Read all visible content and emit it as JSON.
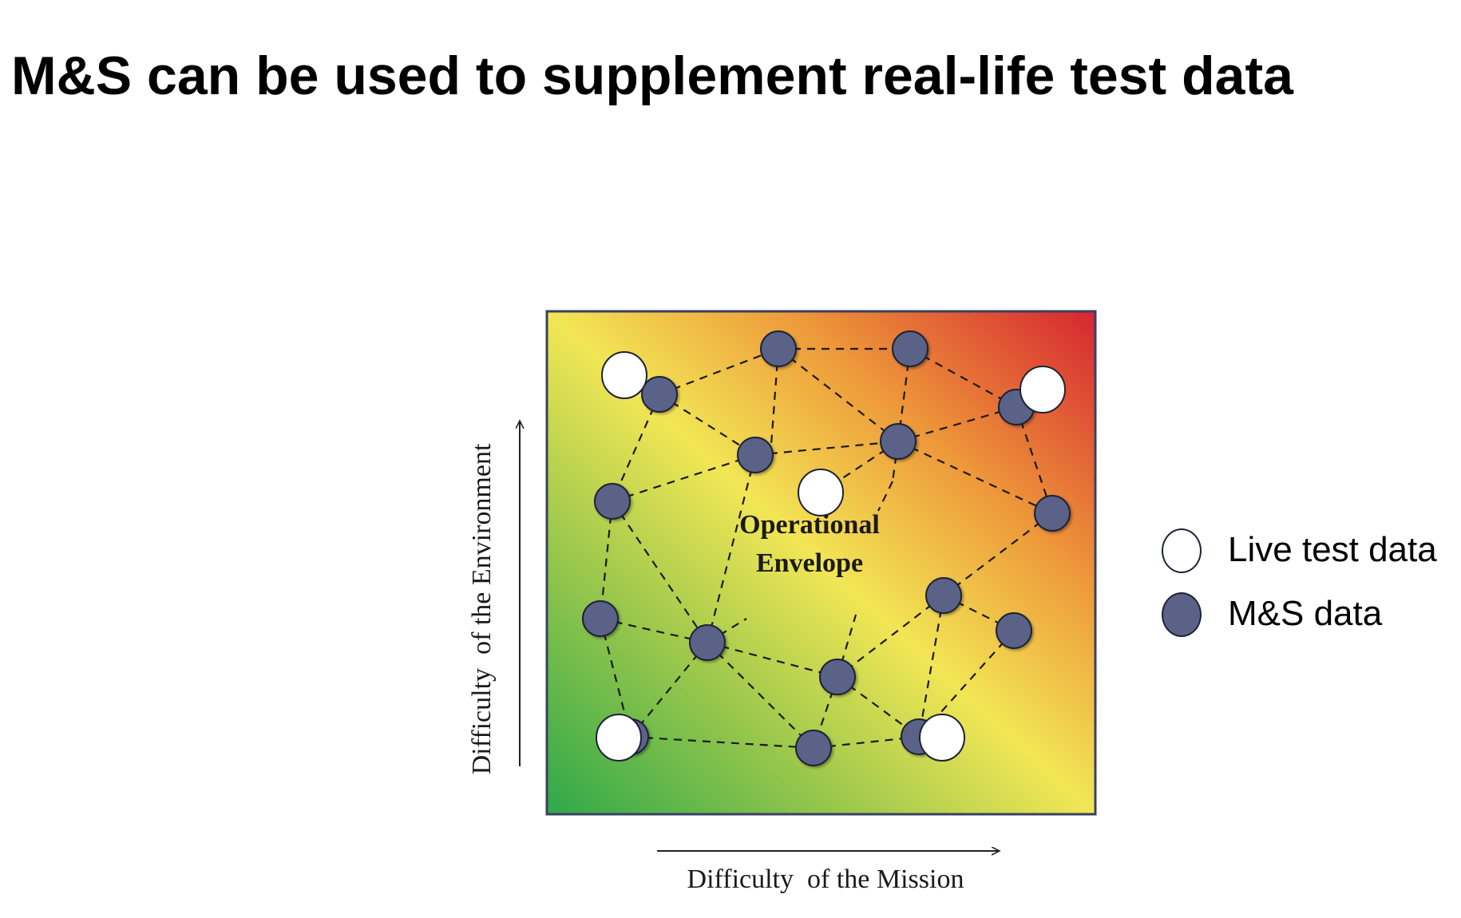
{
  "slide": {
    "title": "M&S can be used to supplement real-life test data"
  },
  "diagram": {
    "center_label_line1": "Operational",
    "center_label_line2": "Envelope",
    "x_axis_label": "Difficulty  of the Mission",
    "y_axis_label": "Difficulty  of the Environment"
  },
  "legend": {
    "items": [
      {
        "label": "Live test data",
        "kind": "live",
        "color": "#ffffff"
      },
      {
        "label": "M&S data",
        "kind": "ms",
        "color": "#5a6288"
      }
    ]
  },
  "colors": {
    "gradient_low": "#3aa845",
    "gradient_mid": "#f2e655",
    "gradient_high": "#d72a32",
    "ms_node": "#5a6288",
    "live_node": "#ffffff",
    "frame": "#3a4060"
  }
}
